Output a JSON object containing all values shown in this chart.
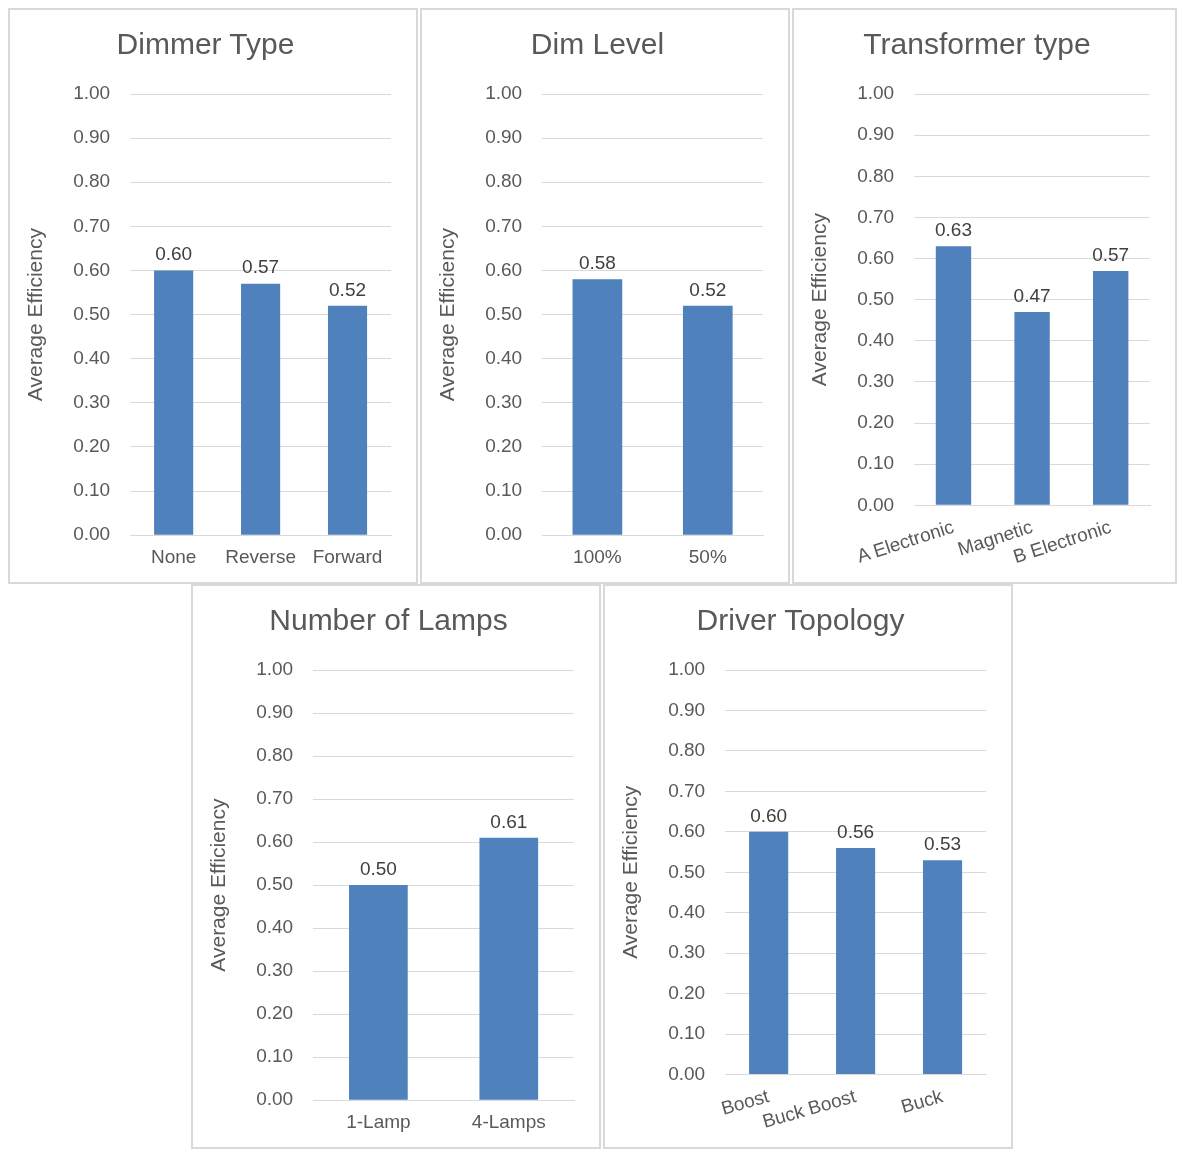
{
  "chart_data": [
    {
      "type": "bar",
      "title": "Dimmer Type",
      "ylabel": "Average Efficiency",
      "categories": [
        "None",
        "Reverse",
        "Forward"
      ],
      "values": [
        0.6,
        0.57,
        0.52
      ],
      "value_labels": [
        "0.60",
        "0.57",
        "0.52"
      ],
      "color": "#4f81bd",
      "ylim": [
        0,
        1
      ],
      "yticks": [
        {
          "value": 0,
          "label": "0.00"
        },
        {
          "value": 0.1,
          "label": "0.10"
        },
        {
          "value": 0.2,
          "label": "0.20"
        },
        {
          "value": 0.3,
          "label": "0.30"
        },
        {
          "value": 0.4,
          "label": "0.40"
        },
        {
          "value": 0.5,
          "label": "0.50"
        },
        {
          "value": 0.6,
          "label": "0.60"
        },
        {
          "value": 0.7,
          "label": "0.70"
        },
        {
          "value": 0.8,
          "label": "0.80"
        },
        {
          "value": 0.9,
          "label": "0.90"
        },
        {
          "value": 1,
          "label": "1.00"
        }
      ],
      "grid": "y",
      "legend": false
    },
    {
      "type": "bar",
      "title": "Dim Level",
      "ylabel": "Average Efficiency",
      "categories": [
        "100%",
        "50%"
      ],
      "values": [
        0.58,
        0.52
      ],
      "value_labels": [
        "0.58",
        "0.52"
      ],
      "color": "#4f81bd",
      "ylim": [
        0,
        1
      ],
      "yticks": [
        {
          "value": 0,
          "label": "0.00"
        },
        {
          "value": 0.1,
          "label": "0.10"
        },
        {
          "value": 0.2,
          "label": "0.20"
        },
        {
          "value": 0.3,
          "label": "0.30"
        },
        {
          "value": 0.4,
          "label": "0.40"
        },
        {
          "value": 0.5,
          "label": "0.50"
        },
        {
          "value": 0.6,
          "label": "0.60"
        },
        {
          "value": 0.7,
          "label": "0.70"
        },
        {
          "value": 0.8,
          "label": "0.80"
        },
        {
          "value": 0.9,
          "label": "0.90"
        },
        {
          "value": 1,
          "label": "1.00"
        }
      ],
      "grid": "y",
      "legend": false
    },
    {
      "type": "bar",
      "title": "Transformer type",
      "ylabel": "Average Efficiency",
      "categories": [
        "A Electronic",
        "Magnetic",
        "B Electronic"
      ],
      "values": [
        0.63,
        0.47,
        0.57
      ],
      "value_labels": [
        "0.63",
        "0.47",
        "0.57"
      ],
      "color": "#4f81bd",
      "ylim": [
        0,
        1
      ],
      "yticks": [
        {
          "value": 0,
          "label": "0.00"
        },
        {
          "value": 0.1,
          "label": "0.10"
        },
        {
          "value": 0.2,
          "label": "0.20"
        },
        {
          "value": 0.3,
          "label": "0.30"
        },
        {
          "value": 0.4,
          "label": "0.40"
        },
        {
          "value": 0.5,
          "label": "0.50"
        },
        {
          "value": 0.6,
          "label": "0.60"
        },
        {
          "value": 0.7,
          "label": "0.70"
        },
        {
          "value": 0.8,
          "label": "0.80"
        },
        {
          "value": 0.9,
          "label": "0.90"
        },
        {
          "value": 1,
          "label": "1.00"
        }
      ],
      "grid": "y",
      "legend": false
    },
    {
      "type": "bar",
      "title": "Number of Lamps",
      "ylabel": "Average Efficiency",
      "categories": [
        "1-Lamp",
        "4-Lamps"
      ],
      "values": [
        0.5,
        0.61
      ],
      "value_labels": [
        "0.50",
        "0.61"
      ],
      "color": "#4f81bd",
      "ylim": [
        0,
        1
      ],
      "yticks": [
        {
          "value": 0,
          "label": "0.00"
        },
        {
          "value": 0.1,
          "label": "0.10"
        },
        {
          "value": 0.2,
          "label": "0.20"
        },
        {
          "value": 0.3,
          "label": "0.30"
        },
        {
          "value": 0.4,
          "label": "0.40"
        },
        {
          "value": 0.5,
          "label": "0.50"
        },
        {
          "value": 0.6,
          "label": "0.60"
        },
        {
          "value": 0.7,
          "label": "0.70"
        },
        {
          "value": 0.8,
          "label": "0.80"
        },
        {
          "value": 0.9,
          "label": "0.90"
        },
        {
          "value": 1,
          "label": "1.00"
        }
      ],
      "grid": "y",
      "legend": false
    },
    {
      "type": "bar",
      "title": "Driver Topology",
      "ylabel": "Average Efficiency",
      "categories": [
        "Boost",
        "Buck Boost",
        "Buck"
      ],
      "values": [
        0.6,
        0.56,
        0.53
      ],
      "value_labels": [
        "0.60",
        "0.56",
        "0.53"
      ],
      "color": "#4f81bd",
      "ylim": [
        0,
        1
      ],
      "yticks": [
        {
          "value": 0,
          "label": "0.00"
        },
        {
          "value": 0.1,
          "label": "0.10"
        },
        {
          "value": 0.2,
          "label": "0.20"
        },
        {
          "value": 0.3,
          "label": "0.30"
        },
        {
          "value": 0.4,
          "label": "0.40"
        },
        {
          "value": 0.5,
          "label": "0.50"
        },
        {
          "value": 0.6,
          "label": "0.60"
        },
        {
          "value": 0.7,
          "label": "0.70"
        },
        {
          "value": 0.8,
          "label": "0.80"
        },
        {
          "value": 0.9,
          "label": "0.90"
        },
        {
          "value": 1,
          "label": "1.00"
        }
      ],
      "grid": "y",
      "legend": false
    }
  ]
}
